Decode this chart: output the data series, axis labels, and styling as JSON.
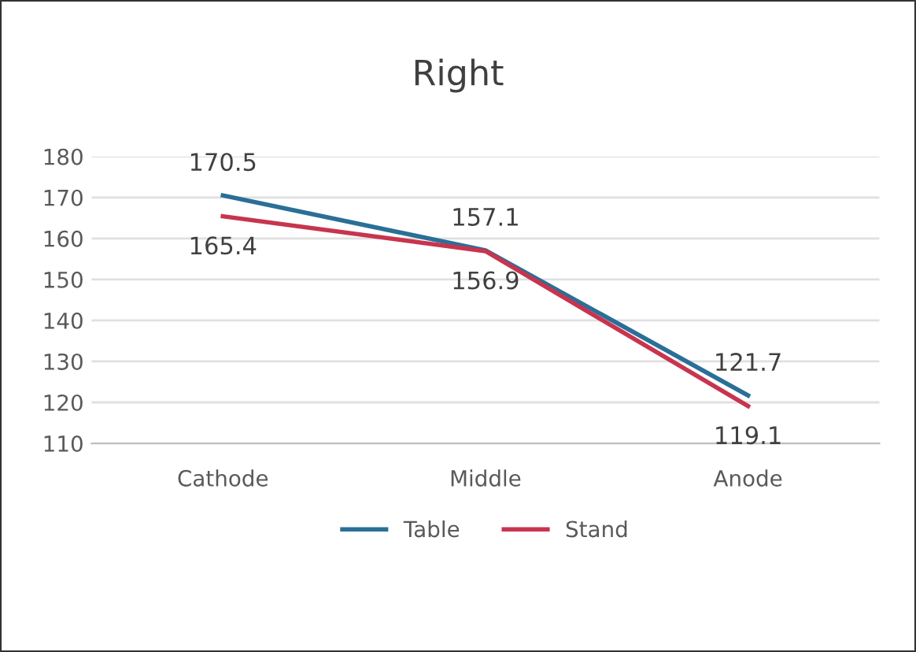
{
  "chart_data": {
    "type": "line",
    "title": "Right",
    "categories": [
      "Cathode",
      "Middle",
      "Anode"
    ],
    "series": [
      {
        "name": "Table",
        "color": "#2a6f97",
        "values": [
          170.5,
          157.1,
          121.7
        ]
      },
      {
        "name": "Stand",
        "color": "#c8344e",
        "values": [
          165.4,
          156.9,
          119.1
        ]
      }
    ],
    "ylim": [
      110,
      180
    ],
    "yticks": [
      110,
      120,
      130,
      140,
      150,
      160,
      170,
      180
    ],
    "grid": "y",
    "legend": "bottom",
    "data_labels": true,
    "marker": "none",
    "line_style": "solid"
  }
}
